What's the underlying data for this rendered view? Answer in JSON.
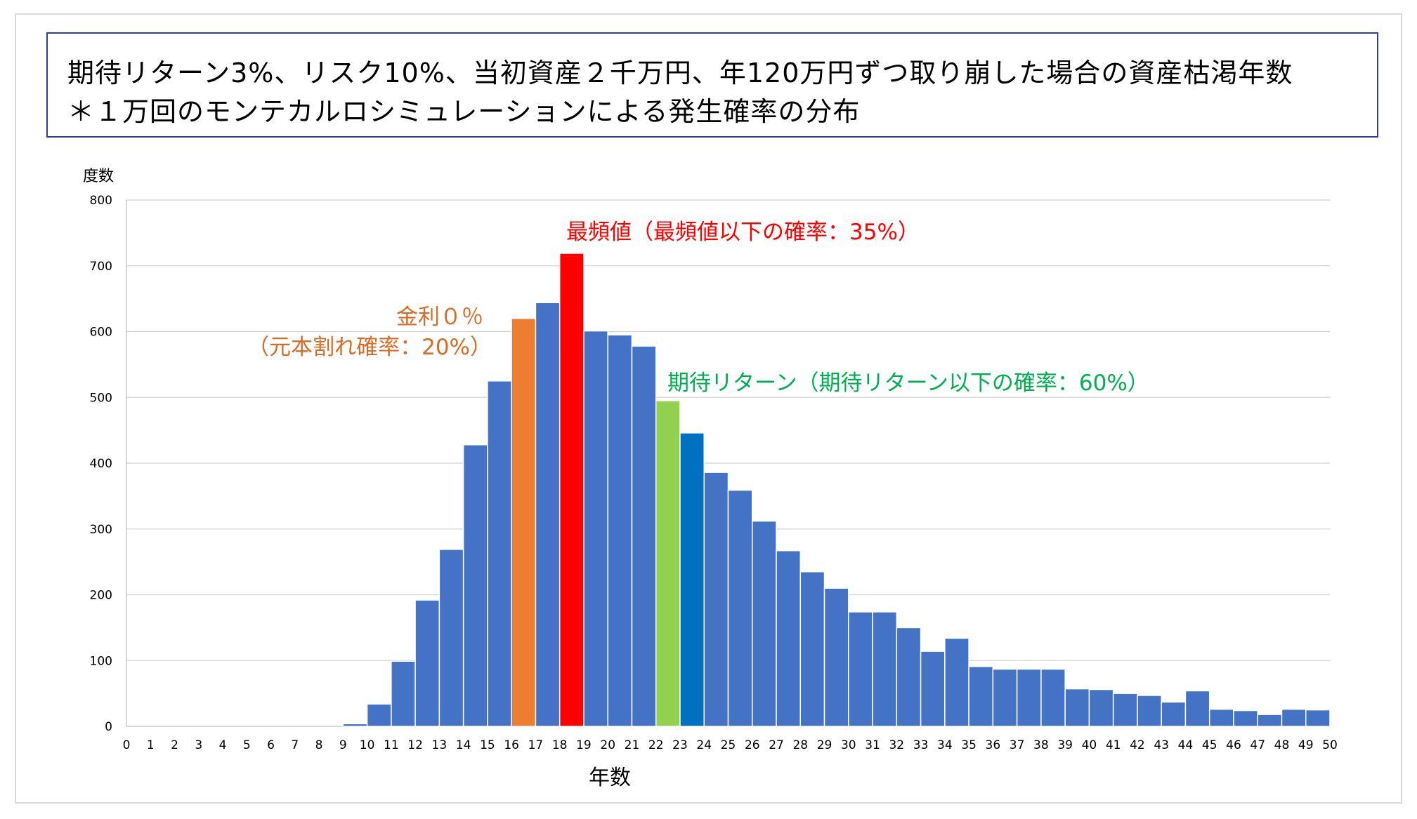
{
  "title": {
    "line1": "期待リターン3%、リスク10%、当初資産２千万円、年120万円ずつ取り崩した場合の資産枯渇年数",
    "line2": "＊１万回のモンテカルロシミュレーションによる発生確率の分布"
  },
  "colors": {
    "default_bar": "#4472c4",
    "zero_interest_bar": "#ed7d31",
    "mode_bar": "#ff0000",
    "expected_return_bar": "#92d050",
    "after_expected_bar": "#0070c0",
    "zero_interest_text": "#d86c26",
    "mode_text": "#ff0000",
    "expected_return_text": "#00b050",
    "grid": "#d0d0d0"
  },
  "annotations": {
    "mode": "最頻値（最頻値以下の確率：35%）",
    "zero_interest_line1": "金利０％",
    "zero_interest_line2": "（元本割れ確率：20%）",
    "expected_return": "期待リターン（期待リターン以下の確率：60%）"
  },
  "chart_data": {
    "type": "bar",
    "xlabel": "年数",
    "ylabel": "度数",
    "ylim": [
      0,
      800
    ],
    "yticks": [
      0,
      100,
      200,
      300,
      400,
      500,
      600,
      700,
      800
    ],
    "grid": true,
    "x_edges": [
      0,
      1,
      2,
      3,
      4,
      5,
      6,
      7,
      8,
      9,
      10,
      11,
      12,
      13,
      14,
      15,
      16,
      17,
      18,
      19,
      20,
      21,
      22,
      23,
      24,
      25,
      26,
      27,
      28,
      29,
      30,
      31,
      32,
      33,
      34,
      35,
      36,
      37,
      38,
      39,
      40,
      41,
      42,
      43,
      44,
      45,
      46,
      47,
      48,
      49,
      50
    ],
    "bins": [
      {
        "from": 9,
        "to": 10,
        "value": 4
      },
      {
        "from": 10,
        "to": 11,
        "value": 34
      },
      {
        "from": 11,
        "to": 12,
        "value": 99
      },
      {
        "from": 12,
        "to": 13,
        "value": 192
      },
      {
        "from": 13,
        "to": 14,
        "value": 269
      },
      {
        "from": 14,
        "to": 15,
        "value": 428
      },
      {
        "from": 15,
        "to": 16,
        "value": 525
      },
      {
        "from": 16,
        "to": 17,
        "value": 620,
        "highlight": "zero_interest"
      },
      {
        "from": 17,
        "to": 18,
        "value": 644
      },
      {
        "from": 18,
        "to": 19,
        "value": 719,
        "highlight": "mode"
      },
      {
        "from": 19,
        "to": 20,
        "value": 601
      },
      {
        "from": 20,
        "to": 21,
        "value": 595
      },
      {
        "from": 21,
        "to": 22,
        "value": 578
      },
      {
        "from": 22,
        "to": 23,
        "value": 495,
        "highlight": "expected_return"
      },
      {
        "from": 23,
        "to": 24,
        "value": 446,
        "highlight": "after_expected"
      },
      {
        "from": 24,
        "to": 25,
        "value": 386
      },
      {
        "from": 25,
        "to": 26,
        "value": 359
      },
      {
        "from": 26,
        "to": 27,
        "value": 312
      },
      {
        "from": 27,
        "to": 28,
        "value": 267
      },
      {
        "from": 28,
        "to": 29,
        "value": 235
      },
      {
        "from": 29,
        "to": 30,
        "value": 210
      },
      {
        "from": 30,
        "to": 31,
        "value": 174
      },
      {
        "from": 31,
        "to": 32,
        "value": 174
      },
      {
        "from": 32,
        "to": 33,
        "value": 150
      },
      {
        "from": 33,
        "to": 34,
        "value": 114
      },
      {
        "from": 34,
        "to": 35,
        "value": 134
      },
      {
        "from": 35,
        "to": 36,
        "value": 91
      },
      {
        "from": 36,
        "to": 37,
        "value": 87
      },
      {
        "from": 37,
        "to": 38,
        "value": 87
      },
      {
        "from": 38,
        "to": 39,
        "value": 87
      },
      {
        "from": 39,
        "to": 40,
        "value": 57
      },
      {
        "from": 40,
        "to": 41,
        "value": 56
      },
      {
        "from": 41,
        "to": 42,
        "value": 50
      },
      {
        "from": 42,
        "to": 43,
        "value": 47
      },
      {
        "from": 43,
        "to": 44,
        "value": 37
      },
      {
        "from": 44,
        "to": 45,
        "value": 54
      },
      {
        "from": 45,
        "to": 46,
        "value": 26
      },
      {
        "from": 46,
        "to": 47,
        "value": 24
      },
      {
        "from": 47,
        "to": 48,
        "value": 18
      },
      {
        "from": 48,
        "to": 49,
        "value": 26
      },
      {
        "from": 49,
        "to": 50,
        "value": 25
      }
    ]
  }
}
